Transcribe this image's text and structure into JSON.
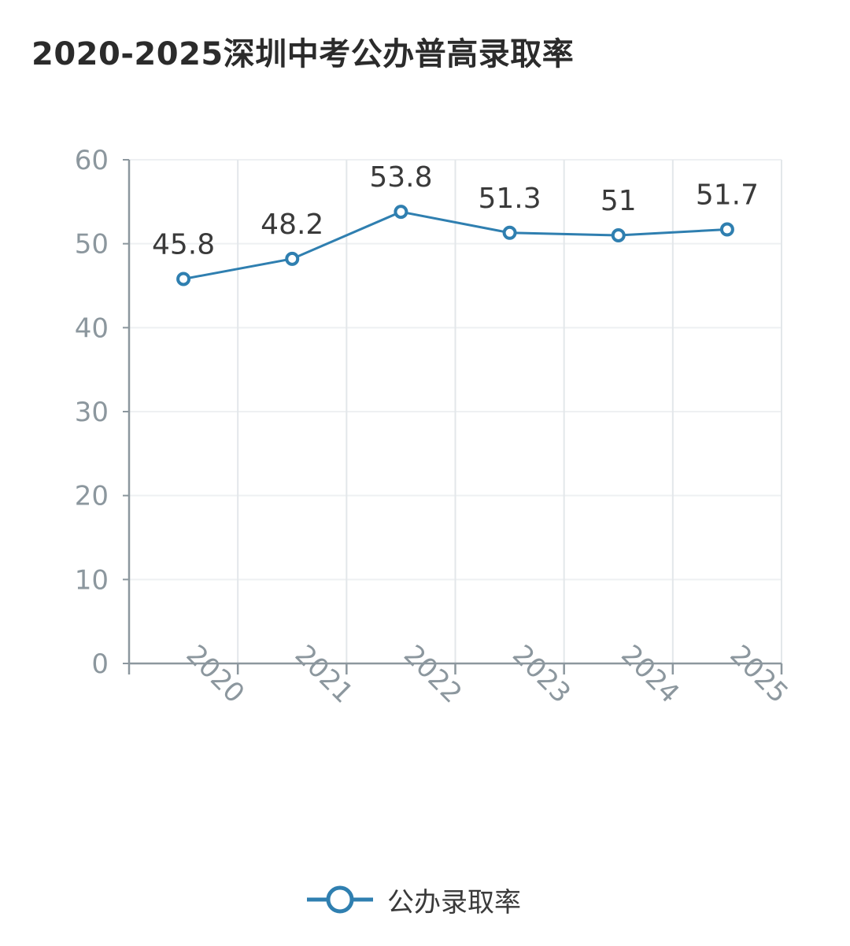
{
  "chart_data": {
    "type": "line",
    "title": "2020-2025深圳中考公办普高录取率",
    "categories": [
      "2020",
      "2021",
      "2022",
      "2023",
      "2024",
      "2025"
    ],
    "series": [
      {
        "name": "公办录取率",
        "values": [
          45.8,
          48.2,
          53.8,
          51.3,
          51,
          51.7
        ],
        "color": "#2f7fb0"
      }
    ],
    "data_labels": [
      "45.8",
      "48.2",
      "53.8",
      "51.3",
      "51",
      "51.7"
    ],
    "yticks": [
      0,
      10,
      20,
      30,
      40,
      50,
      60
    ],
    "ylim": [
      0,
      60
    ],
    "xlabel": "",
    "ylabel": "",
    "grid": true,
    "legend_position": "bottom"
  }
}
